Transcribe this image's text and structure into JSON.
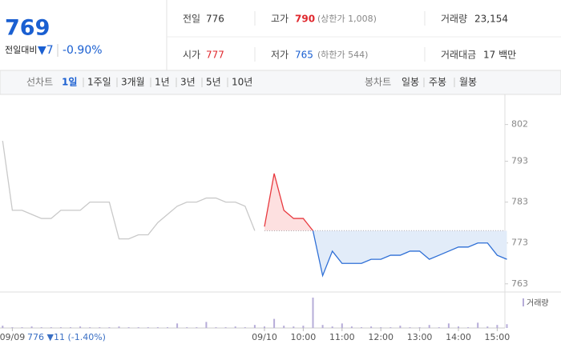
{
  "quote": {
    "price": 769,
    "change_label": "전일대비",
    "change": "▼7",
    "change_pct": "-0.90%",
    "fields": [
      {
        "label": "전일",
        "value": 776
      },
      {
        "label": "고가",
        "value": 790,
        "note": "(상한가 1,008)"
      },
      {
        "label": "거래량",
        "value": "23,154"
      },
      {
        "label": "시가",
        "value": 777
      },
      {
        "label": "저가",
        "value": 765,
        "note": "(하한가 544)"
      },
      {
        "label": "거래대금",
        "value": "17 백만"
      }
    ]
  },
  "tabs": {
    "line_label": "선차트",
    "line_items": [
      "1일",
      "1주일",
      "3개월",
      "1년",
      "3년",
      "5년",
      "10년"
    ],
    "candle_label": "봉차트",
    "candle_items": [
      "일봉",
      "주봉",
      "월봉"
    ]
  },
  "chart_data": {
    "type": "line",
    "categories": [
      null,
      "09/09",
      null,
      null,
      null,
      null,
      null,
      null,
      null,
      null,
      null,
      null,
      null,
      null,
      null,
      null,
      null,
      null,
      null,
      null,
      null,
      null,
      null,
      null,
      null,
      null,
      null,
      "09/10",
      null,
      null,
      null,
      "10:00",
      null,
      null,
      null,
      "11:00",
      null,
      null,
      null,
      "12:00",
      null,
      null,
      null,
      "13:00",
      null,
      null,
      null,
      "14:00",
      null,
      null,
      null,
      "15:00",
      null
    ],
    "prev_day_note": "776 ▼11 (-1.40%)",
    "series": [
      {
        "color": "#c9c9c9",
        "values": [
          798,
          781,
          781,
          780,
          779,
          779,
          781,
          781,
          781,
          783,
          783,
          783,
          774,
          774,
          775,
          775,
          778,
          780,
          782,
          783,
          783,
          784,
          784,
          783,
          783,
          782,
          776,
          null,
          null,
          null,
          null,
          null,
          null,
          null,
          null,
          null,
          null,
          null,
          null,
          null,
          null,
          null,
          null,
          null,
          null,
          null,
          null,
          null,
          null,
          null,
          null,
          null,
          null
        ]
      },
      {
        "color": "#e8393f",
        "down_color": "#2e6fd6",
        "values": [
          null,
          null,
          null,
          null,
          null,
          null,
          null,
          null,
          null,
          null,
          null,
          null,
          null,
          null,
          null,
          null,
          null,
          null,
          null,
          null,
          null,
          null,
          null,
          null,
          null,
          null,
          null,
          777,
          790,
          781,
          779,
          779,
          776,
          765,
          771,
          768,
          768,
          768,
          769,
          769,
          770,
          770,
          771,
          771,
          769,
          770,
          771,
          772,
          772,
          773,
          773,
          770,
          769
        ]
      }
    ],
    "ylim": [
      761,
      808
    ],
    "yticks": [
      802,
      793,
      783,
      773,
      763
    ],
    "grid": false,
    "volume": {
      "name": "거래량",
      "color": "#b6acd8",
      "ylim": [
        0,
        40
      ],
      "values": [
        3,
        1,
        1,
        2,
        1,
        1,
        1,
        1,
        2,
        1,
        1,
        1,
        2,
        1,
        1,
        1,
        1,
        1,
        6,
        1,
        1,
        8,
        1,
        1,
        2,
        1,
        4,
        2,
        12,
        3,
        2,
        3,
        40,
        4,
        2,
        6,
        2,
        1,
        2,
        1,
        1,
        3,
        1,
        1,
        4,
        1,
        6,
        2,
        1,
        7,
        2,
        4,
        5
      ]
    }
  }
}
